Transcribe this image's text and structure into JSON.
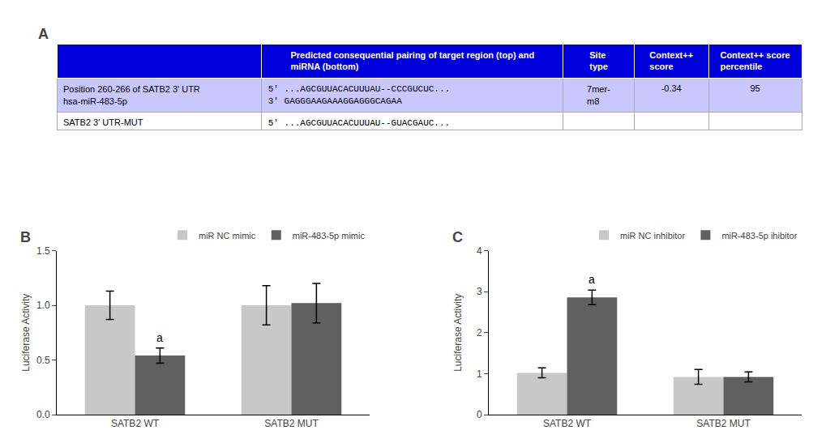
{
  "chart_data": [
    {
      "type": "table",
      "title": "A",
      "header": [
        [],
        [
          "Predicted consequential pairing of target region (top) and",
          "miRNA (bottom)"
        ],
        [
          "Site",
          "type"
        ],
        [
          "Context++",
          "score"
        ],
        [
          "Context++ score",
          "percentile"
        ]
      ],
      "rows": [
        [
          [
            "Position 260-266 of SATB2 3' UTR",
            "hsa-miR-483-5p"
          ],
          [
            "5' ...AGCGUUACACUUUAU--CCCGUCUC...",
            "3' GAGGGAAGAAAGGAGGGCAGAA"
          ],
          [
            "7mer-",
            "m8"
          ],
          [
            "-0.34"
          ],
          [
            "95"
          ]
        ],
        [
          [
            "SATB2 3' UTR-MUT"
          ],
          [
            "5' ...AGCGUUACACUUUAU--GUACGAUC..."
          ],
          [],
          [],
          []
        ]
      ]
    },
    {
      "type": "bar",
      "title": "B",
      "ylabel": "Luciferase Activity",
      "categories": [
        "SATB2 WT",
        "SATB2 MUT"
      ],
      "series": [
        {
          "name": "miR NC mimic",
          "color": "#c8c8c8",
          "values": [
            1.0,
            1.0
          ],
          "errors": [
            0.13,
            0.18
          ]
        },
        {
          "name": "miR-483-5p mimic",
          "color": "#606060",
          "values": [
            0.54,
            1.02
          ],
          "errors": [
            0.07,
            0.18
          ]
        }
      ],
      "annotations": [
        {
          "text": "a",
          "category": "SATB2 WT",
          "series": "miR-483-5p mimic"
        }
      ],
      "ylim": [
        0,
        1.5
      ],
      "yticks": [
        {
          "value": 0,
          "label": "0.0"
        },
        0.5,
        {
          "value": 1,
          "label": "1.0"
        },
        1.5
      ],
      "legend": "upper right",
      "grid": false
    },
    {
      "type": "bar",
      "title": "C",
      "ylabel": "Luciferase Activity",
      "categories": [
        "SATB2 WT",
        "SATB2 MUT"
      ],
      "series": [
        {
          "name": "miR NC inhibitor",
          "color": "#c8c8c8",
          "values": [
            1.02,
            0.92
          ],
          "errors": [
            0.12,
            0.18
          ]
        },
        {
          "name": "miR-483-5p ihibitor",
          "color": "#606060",
          "values": [
            2.86,
            0.92
          ],
          "errors": [
            0.18,
            0.12
          ]
        }
      ],
      "annotations": [
        {
          "text": "a",
          "category": "SATB2 WT",
          "series": "miR-483-5p ihibitor"
        }
      ],
      "ylim": [
        0,
        4
      ],
      "yticks": [
        0,
        1,
        2,
        3,
        4
      ],
      "legend": "upper right",
      "grid": false
    }
  ]
}
